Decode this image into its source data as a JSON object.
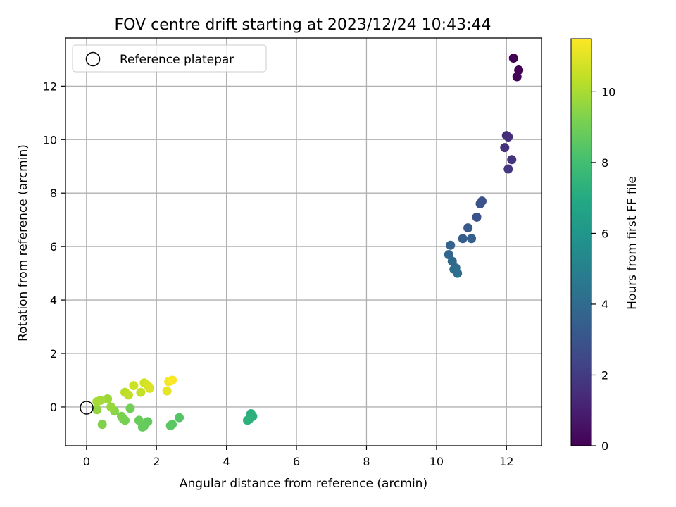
{
  "chart_data": {
    "type": "scatter",
    "title": "FOV centre drift starting at 2023/12/24 10:43:44",
    "xlabel": "Angular distance from reference (arcmin)",
    "ylabel": "Rotation from reference (arcmin)",
    "xlim": [
      -0.6,
      13.0
    ],
    "ylim": [
      -1.45,
      13.8
    ],
    "xticks": [
      0,
      2,
      4,
      6,
      8,
      10,
      12
    ],
    "yticks": [
      0,
      2,
      4,
      6,
      8,
      10,
      12
    ],
    "grid": true,
    "colormap": "viridis",
    "colorbar": {
      "label": "Hours from first FF file",
      "range": [
        0,
        11.5
      ],
      "ticks": [
        0,
        2,
        4,
        6,
        8,
        10
      ]
    },
    "legend": {
      "placement": "top-left",
      "entries": [
        "Reference platepar"
      ]
    },
    "reference_point": {
      "x": 0,
      "y": 0
    },
    "points": [
      {
        "x": 12.2,
        "y": 13.05,
        "c": 0.0
      },
      {
        "x": 12.35,
        "y": 12.6,
        "c": 0.05
      },
      {
        "x": 12.3,
        "y": 12.35,
        "c": 0.1
      },
      {
        "x": 12.0,
        "y": 10.15,
        "c": 1.4
      },
      {
        "x": 12.05,
        "y": 10.1,
        "c": 1.5
      },
      {
        "x": 11.95,
        "y": 9.7,
        "c": 1.6
      },
      {
        "x": 12.15,
        "y": 9.25,
        "c": 1.7
      },
      {
        "x": 12.05,
        "y": 8.9,
        "c": 1.8
      },
      {
        "x": 11.3,
        "y": 7.7,
        "c": 2.8
      },
      {
        "x": 11.25,
        "y": 7.6,
        "c": 2.9
      },
      {
        "x": 11.15,
        "y": 7.1,
        "c": 3.0
      },
      {
        "x": 10.9,
        "y": 6.7,
        "c": 3.2
      },
      {
        "x": 10.75,
        "y": 6.3,
        "c": 3.4
      },
      {
        "x": 11.0,
        "y": 6.3,
        "c": 3.5
      },
      {
        "x": 10.4,
        "y": 6.05,
        "c": 3.7
      },
      {
        "x": 10.35,
        "y": 5.7,
        "c": 3.8
      },
      {
        "x": 10.45,
        "y": 5.45,
        "c": 3.9
      },
      {
        "x": 10.55,
        "y": 5.2,
        "c": 4.0
      },
      {
        "x": 10.5,
        "y": 5.15,
        "c": 4.1
      },
      {
        "x": 10.6,
        "y": 5.0,
        "c": 4.2
      },
      {
        "x": 4.7,
        "y": -0.25,
        "c": 7.2
      },
      {
        "x": 4.75,
        "y": -0.35,
        "c": 7.25
      },
      {
        "x": 4.65,
        "y": -0.45,
        "c": 7.3
      },
      {
        "x": 4.6,
        "y": -0.5,
        "c": 7.35
      },
      {
        "x": 2.65,
        "y": -0.4,
        "c": 8.4
      },
      {
        "x": 2.45,
        "y": -0.65,
        "c": 8.5
      },
      {
        "x": 2.4,
        "y": -0.7,
        "c": 8.55
      },
      {
        "x": 1.75,
        "y": -0.55,
        "c": 8.7
      },
      {
        "x": 1.65,
        "y": -0.7,
        "c": 8.75
      },
      {
        "x": 1.6,
        "y": -0.75,
        "c": 8.8
      },
      {
        "x": 1.5,
        "y": -0.5,
        "c": 8.85
      },
      {
        "x": 1.25,
        "y": -0.05,
        "c": 9.0
      },
      {
        "x": 1.1,
        "y": -0.5,
        "c": 9.1
      },
      {
        "x": 1.05,
        "y": -0.45,
        "c": 9.15
      },
      {
        "x": 1.0,
        "y": -0.35,
        "c": 9.2
      },
      {
        "x": 0.45,
        "y": -0.65,
        "c": 9.3
      },
      {
        "x": 0.8,
        "y": -0.15,
        "c": 9.45
      },
      {
        "x": 0.3,
        "y": -0.1,
        "c": 9.6
      },
      {
        "x": 0.7,
        "y": 0.0,
        "c": 9.7
      },
      {
        "x": 0.6,
        "y": 0.3,
        "c": 9.8
      },
      {
        "x": 0.4,
        "y": 0.25,
        "c": 9.9
      },
      {
        "x": 0.3,
        "y": 0.2,
        "c": 9.95
      },
      {
        "x": 1.1,
        "y": 0.55,
        "c": 10.3
      },
      {
        "x": 1.2,
        "y": 0.45,
        "c": 10.4
      },
      {
        "x": 1.55,
        "y": 0.55,
        "c": 10.5
      },
      {
        "x": 1.35,
        "y": 0.8,
        "c": 10.6
      },
      {
        "x": 1.65,
        "y": 0.9,
        "c": 10.7
      },
      {
        "x": 1.75,
        "y": 0.8,
        "c": 10.8
      },
      {
        "x": 1.8,
        "y": 0.7,
        "c": 10.85
      },
      {
        "x": 2.3,
        "y": 0.6,
        "c": 11.1
      },
      {
        "x": 2.35,
        "y": 0.95,
        "c": 11.3
      },
      {
        "x": 2.45,
        "y": 1.0,
        "c": 11.45
      }
    ]
  }
}
